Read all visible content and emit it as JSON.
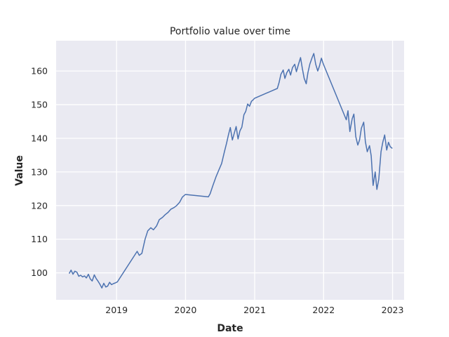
{
  "chart_data": {
    "type": "line",
    "title": "Portfolio value over time",
    "xlabel": "Date",
    "ylabel": "Value",
    "x_ticks": [
      "2019",
      "2020",
      "2021",
      "2022",
      "2023"
    ],
    "y_ticks": [
      100,
      110,
      120,
      130,
      140,
      150,
      160
    ],
    "xlim": [
      "2018-02-15",
      "2023-03-03"
    ],
    "ylim": [
      92,
      169
    ],
    "grid": true,
    "legend": "none",
    "line_color": "#4c72b0",
    "background_color": "#eaeaf2",
    "series": [
      {
        "x": [
          "2018-04-25",
          "2018-05-05",
          "2018-05-15",
          "2018-05-25",
          "2018-06-05",
          "2018-06-15",
          "2018-06-25",
          "2018-07-05",
          "2018-07-15",
          "2018-07-25",
          "2018-08-05",
          "2018-08-15",
          "2018-08-25",
          "2018-09-05",
          "2018-09-15",
          "2018-09-25",
          "2018-10-05",
          "2018-10-15",
          "2018-10-25",
          "2018-11-05",
          "2018-11-15",
          "2018-11-25",
          "2018-12-05",
          "2018-12-15",
          "2018-12-25",
          "2019-01-05",
          "2019-04-20",
          "2019-05-01",
          "2019-05-15",
          "2019-06-01",
          "2019-06-15",
          "2019-07-01",
          "2019-07-15",
          "2019-08-01",
          "2019-08-15",
          "2019-09-01",
          "2019-09-15",
          "2019-10-01",
          "2019-10-15",
          "2019-11-01",
          "2019-11-15",
          "2019-12-01",
          "2019-12-15",
          "2019-12-31",
          "2020-05-01",
          "2020-05-10",
          "2020-05-25",
          "2020-06-10",
          "2020-06-25",
          "2020-07-10",
          "2020-07-25",
          "2020-08-05",
          "2020-08-15",
          "2020-08-25",
          "2020-09-05",
          "2020-09-15",
          "2020-09-25",
          "2020-10-05",
          "2020-10-15",
          "2020-10-25",
          "2020-11-05",
          "2020-11-15",
          "2020-11-25",
          "2020-12-05",
          "2020-12-15",
          "2020-12-25",
          "2021-01-01",
          "2021-05-01",
          "2021-05-10",
          "2021-05-20",
          "2021-06-01",
          "2021-06-10",
          "2021-06-20",
          "2021-07-01",
          "2021-07-10",
          "2021-07-20",
          "2021-08-01",
          "2021-08-10",
          "2021-08-20",
          "2021-09-01",
          "2021-09-10",
          "2021-09-20",
          "2021-10-01",
          "2021-10-10",
          "2021-10-20",
          "2021-11-01",
          "2021-11-10",
          "2021-11-20",
          "2021-12-01",
          "2021-12-10",
          "2021-12-20",
          "2021-12-31",
          "2022-05-01",
          "2022-05-10",
          "2022-05-20",
          "2022-06-01",
          "2022-06-10",
          "2022-06-20",
          "2022-07-01",
          "2022-07-10",
          "2022-07-20",
          "2022-08-01",
          "2022-08-10",
          "2022-08-20",
          "2022-09-01",
          "2022-09-10",
          "2022-09-20",
          "2022-10-01",
          "2022-10-10",
          "2022-10-20",
          "2022-11-01",
          "2022-11-10",
          "2022-11-20",
          "2022-12-01",
          "2022-12-10",
          "2022-12-20",
          "2022-12-31"
        ],
        "values": [
          99.8,
          100.8,
          99.6,
          100.5,
          100.2,
          99.0,
          99.3,
          98.8,
          99.1,
          98.5,
          99.6,
          98.2,
          97.6,
          99.4,
          98.3,
          97.5,
          96.6,
          95.5,
          96.9,
          95.8,
          96.1,
          97.2,
          96.5,
          96.8,
          97.0,
          97.3,
          106.4,
          105.2,
          105.8,
          110.0,
          112.5,
          113.4,
          112.8,
          114.0,
          115.8,
          116.5,
          117.3,
          118.0,
          118.9,
          119.4,
          120.0,
          121.0,
          122.5,
          123.3,
          122.6,
          123.5,
          126.0,
          128.5,
          130.5,
          132.5,
          136.0,
          138.5,
          141.0,
          143.2,
          139.5,
          141.5,
          143.5,
          139.8,
          142.2,
          143.3,
          147.0,
          148.0,
          150.2,
          149.5,
          151.0,
          151.5,
          151.9,
          154.8,
          156.5,
          159.0,
          160.3,
          157.8,
          159.5,
          160.5,
          158.8,
          161.0,
          162.0,
          159.8,
          161.8,
          164.0,
          160.8,
          157.8,
          156.2,
          159.5,
          162.0,
          164.0,
          165.2,
          162.0,
          160.0,
          161.5,
          163.8,
          162.0,
          145.5,
          148.2,
          142.0,
          145.8,
          147.2,
          140.5,
          138.0,
          139.5,
          143.0,
          144.8,
          139.0,
          136.0,
          137.8,
          134.8,
          126.0,
          130.0,
          124.8,
          127.8,
          136.0,
          138.8,
          141.0,
          136.5,
          138.8,
          137.5,
          137.0
        ]
      }
    ]
  }
}
